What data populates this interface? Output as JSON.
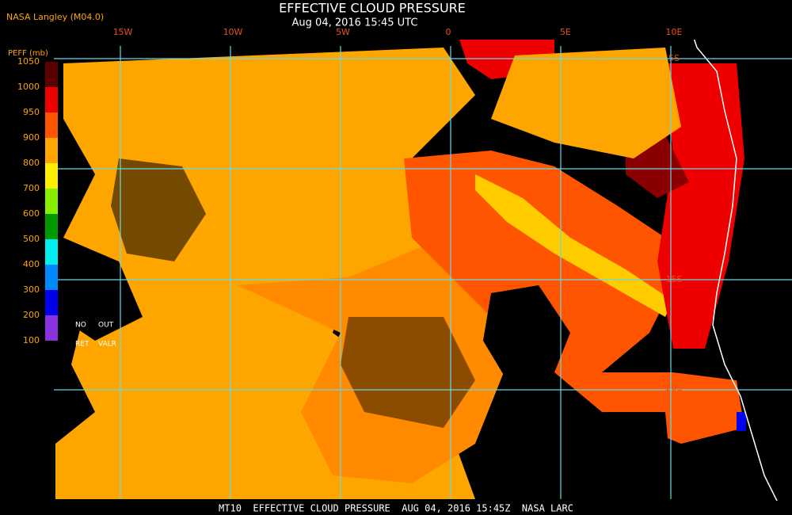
{
  "header": {
    "source": "NASA Langley (M04.0)",
    "title": "EFFECTIVE CLOUD PRESSURE",
    "subtitle": "Aug 04, 2016 15:45 UTC"
  },
  "legend": {
    "label": "PEFF (mb)",
    "ticks": [
      1050,
      1000,
      950,
      900,
      800,
      700,
      600,
      500,
      400,
      300,
      200,
      100
    ],
    "colors": [
      "#5a0000",
      "#ee0000",
      "#ff5500",
      "#ffa500",
      "#ffee00",
      "#88ee00",
      "#009900",
      "#00eeee",
      "#0088ff",
      "#0000ee",
      "#8833dd"
    ],
    "notes": [
      "NO",
      "OUT",
      "RET",
      "VALR"
    ]
  },
  "map": {
    "longitudes": [
      "15W",
      "10W",
      "5W",
      "0",
      "5E",
      "10E"
    ],
    "latitudes": [
      "5S",
      "15S",
      "20S"
    ]
  },
  "footer": "MT10  EFFECTIVE CLOUD PRESSURE  AUG 04, 2016 15:45Z  NASA LARC"
}
